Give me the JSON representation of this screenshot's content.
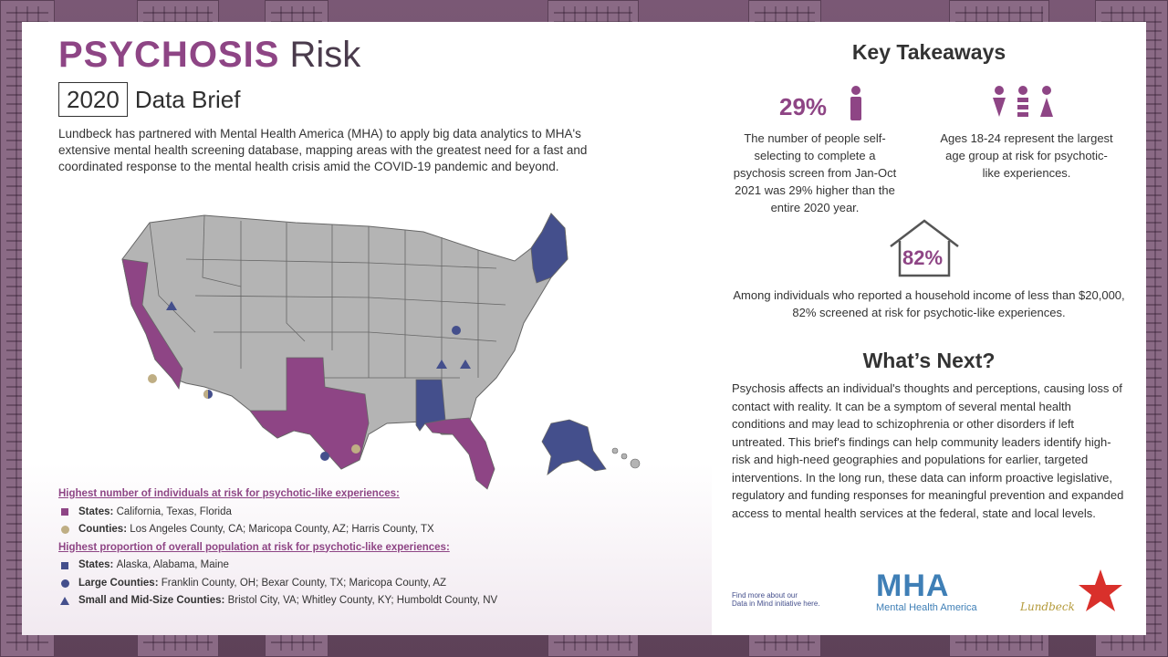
{
  "header": {
    "title_strong": "PSYCHOSIS",
    "title_rest": "Risk",
    "year": "2020",
    "subtitle": "Data Brief"
  },
  "intro": "Lundbeck has partnered with Mental Health America (MHA) to apply big data analytics to MHA's extensive mental health screening database, mapping areas with the greatest need for a fast and coordinated response to the mental health crisis amid the COVID-19 pandemic and beyond.",
  "colors": {
    "purple": "#8e4585",
    "navy": "#444f8c",
    "tan": "#bfae84",
    "state_gray": "#b4b4b4"
  },
  "legend": {
    "header1": "Highest number of individuals at risk for psychotic-like experiences:",
    "states1_label": "States:",
    "states1_value": "California, Texas, Florida",
    "counties1_label": "Counties:",
    "counties1_value": "Los Angeles County, CA; Maricopa County, AZ; Harris County, TX",
    "header2": "Highest proportion of overall population at risk for psychotic-like experiences:",
    "states2_label": "States:",
    "states2_value": "Alaska, Alabama, Maine",
    "large_label": "Large Counties:",
    "large_value": "Franklin County, OH; Bexar County, TX; Maricopa County, AZ",
    "small_label": "Small and Mid-Size Counties:",
    "small_value": "Bristol City, VA; Whitley County, KY; Humboldt County, NV"
  },
  "takeaways": {
    "heading": "Key Takeaways",
    "stat1_pct": "29%",
    "stat1_text": "The number of people self-selecting to complete a psychosis screen from Jan-Oct 2021 was 29% higher than the entire 2020 year.",
    "stat2_text": "Ages 18-24 represent the largest age group at risk for psychotic-like experiences.",
    "stat3_pct": "82%",
    "stat3_text": "Among individuals who reported a household income of less than $20,000, 82% screened at risk for psychotic-like experiences."
  },
  "next": {
    "heading": "What’s Next?",
    "text": "Psychosis affects an individual's thoughts and perceptions, causing loss of contact with reality. It can be a symptom of several mental health conditions and may lead to schizophrenia or other disorders if left untreated. This brief's findings can help community leaders identify high-risk and high-need geographies and populations for earlier, targeted interventions. In the long run, these data can inform proactive legislative, regulatory and funding responses for meaningful prevention and expanded access to mental health services at the federal, state and local levels."
  },
  "footer": {
    "find_line1": "Find more about our",
    "find_line2": "Data in Mind initiative here.",
    "mha_logo": "MHA",
    "mha_sub": "Mental Health America",
    "lundbeck": "Lundbeck"
  }
}
